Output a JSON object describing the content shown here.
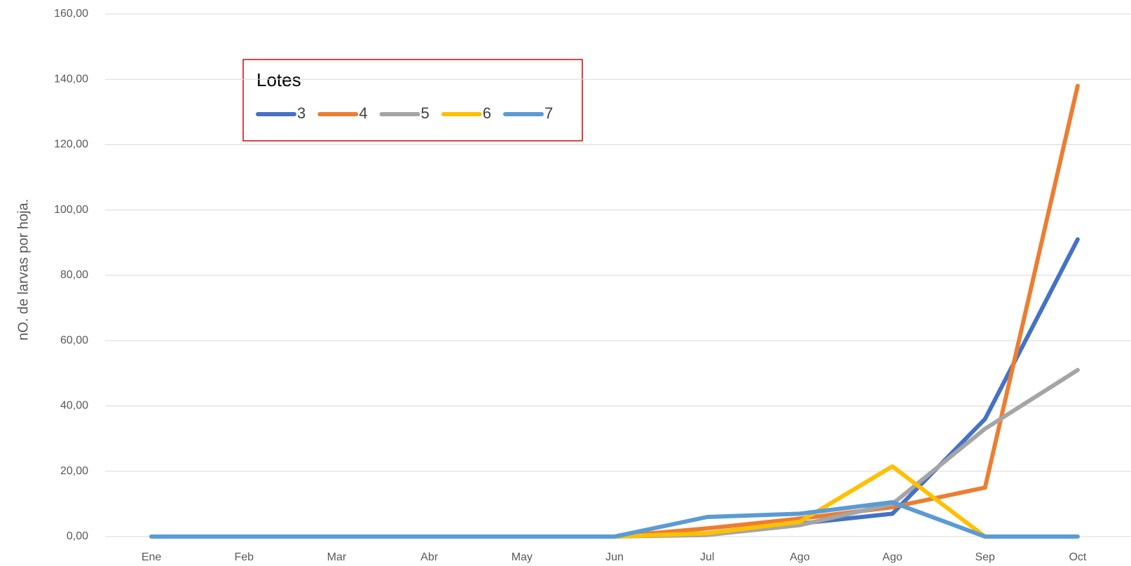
{
  "chart_data": {
    "type": "line",
    "y_label": "nO. de larvas por hoja.",
    "legend_title": "Lotes",
    "categories": [
      "Ene",
      "Feb",
      "Mar",
      "Abr",
      "May",
      "Jun",
      "Jul",
      "Ago",
      "Ago",
      "Sep",
      "Oct"
    ],
    "series": [
      {
        "name": "3",
        "color": "#4472c4",
        "values": [
          0,
          0,
          0,
          0,
          0,
          0,
          1,
          4,
          7,
          36,
          91
        ]
      },
      {
        "name": "4",
        "color": "#ed7d31",
        "values": [
          0,
          0,
          0,
          0,
          0,
          0,
          2.5,
          5.5,
          9,
          15,
          138
        ]
      },
      {
        "name": "5",
        "color": "#a5a5a5",
        "values": [
          0,
          0,
          0,
          0,
          0,
          0,
          0.5,
          3.5,
          10,
          33,
          51
        ]
      },
      {
        "name": "6",
        "color": "#ffc000",
        "values": [
          0,
          0,
          0,
          0,
          0,
          0,
          1,
          4.5,
          21.5,
          0,
          0
        ]
      },
      {
        "name": "7",
        "color": "#5b9bd5",
        "values": [
          0,
          0,
          0,
          0,
          0,
          0,
          6,
          7,
          10.5,
          0,
          0
        ]
      }
    ],
    "ylim": [
      0,
      160
    ],
    "yticks": [
      {
        "value": 0,
        "label": "0,00"
      },
      {
        "value": 20,
        "label": "20,00"
      },
      {
        "value": 40,
        "label": "40,00"
      },
      {
        "value": 60,
        "label": "60,00"
      },
      {
        "value": 80,
        "label": "80,00"
      },
      {
        "value": 100,
        "label": "100,00"
      },
      {
        "value": 120,
        "label": "120,00"
      },
      {
        "value": 140,
        "label": "140,00"
      },
      {
        "value": 160,
        "label": "160,00"
      }
    ],
    "grid": true,
    "legend": "top-left"
  }
}
